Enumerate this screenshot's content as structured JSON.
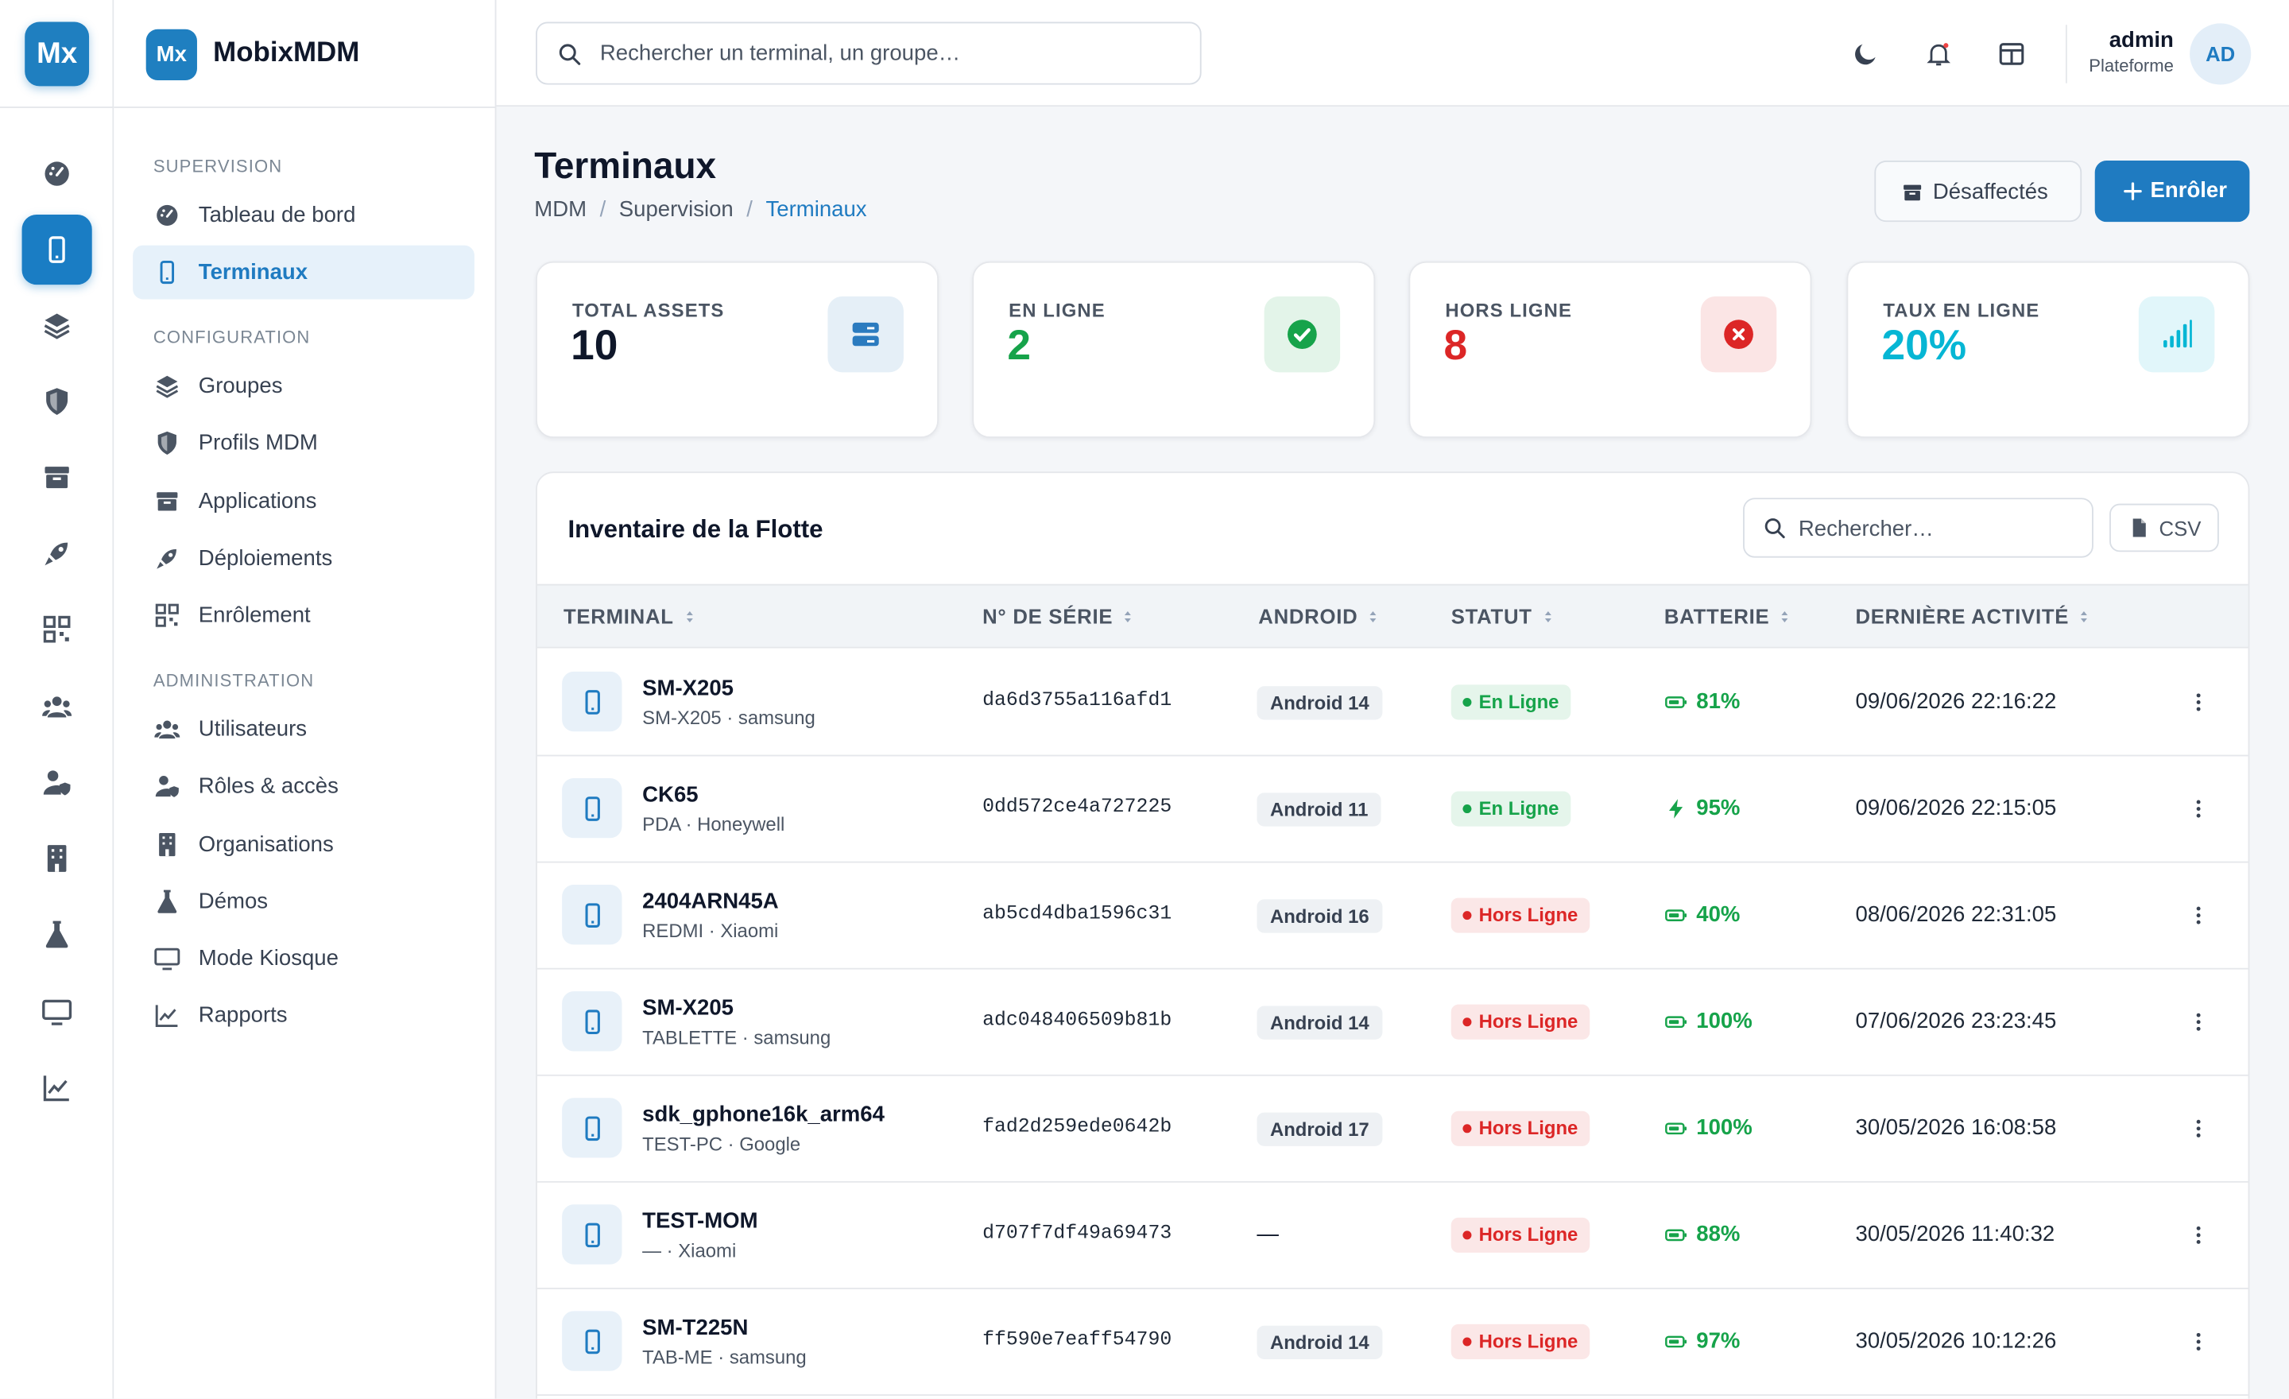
{
  "brand": {
    "logo": "Mx",
    "name": "MobixMDM"
  },
  "topbar": {
    "search": "Rechercher un terminal, un groupe…",
    "user": {
      "name": "admin",
      "role": "Plateforme",
      "initials": "AD"
    }
  },
  "nav": [
    {
      "heading": "SUPERVISION",
      "items": [
        "Tableau de bord",
        "Terminaux"
      ]
    },
    {
      "heading": "CONFIGURATION",
      "items": [
        "Groupes",
        "Profils MDM",
        "Applications",
        "Déploiements",
        "Enrôlement"
      ]
    },
    {
      "heading": "ADMINISTRATION",
      "items": [
        "Utilisateurs",
        "Rôles & accès",
        "Organisations",
        "Démos",
        "Mode Kiosque",
        "Rapports"
      ]
    }
  ],
  "page": {
    "title": "Terminaux",
    "breadcrumb": [
      "MDM",
      "Supervision",
      "Terminaux"
    ],
    "buttons": [
      "Désaffectés",
      "Enrôler"
    ]
  },
  "stats": [
    {
      "label": "TOTAL ASSETS",
      "value": "10",
      "color": "#0f172a",
      "accent": "#2b7bbf"
    },
    {
      "label": "EN LIGNE",
      "value": "2",
      "color": "#16a34a",
      "accent": "#16a34a"
    },
    {
      "label": "HORS LIGNE",
      "value": "8",
      "color": "#dc2626",
      "accent": "#dc2626"
    },
    {
      "label": "TAUX EN LIGNE",
      "value": "20%",
      "color": "#06b6d4",
      "accent": "#06b6d4"
    }
  ],
  "table": {
    "title": "Inventaire de la Flotte",
    "search": "Rechercher…",
    "export": "CSV",
    "columns": [
      "TERMINAL",
      "N° DE SÉRIE",
      "ANDROID",
      "STATUT",
      "BATTERIE",
      "DERNIÈRE ACTIVITÉ"
    ],
    "rows": [
      {
        "name": "SM-X205",
        "model": "SM-X205 · samsung",
        "serial": "da6d3755a116afd1",
        "android": "Android 14",
        "status": {
          "label": "En Ligne",
          "color": "#16a34a"
        },
        "battery": "81%",
        "charging": false,
        "activity": "09/06/2026 22:16:22"
      },
      {
        "name": "CK65",
        "model": "PDA · Honeywell",
        "serial": "0dd572ce4a727225",
        "android": "Android 11",
        "status": {
          "label": "En Ligne",
          "color": "#16a34a"
        },
        "battery": "95%",
        "charging": true,
        "activity": "09/06/2026 22:15:05"
      },
      {
        "name": "2404ARN45A",
        "model": "REDMI · Xiaomi",
        "serial": "ab5cd4dba1596c31",
        "android": "Android 16",
        "status": {
          "label": "Hors Ligne",
          "color": "#dc2626"
        },
        "battery": "40%",
        "charging": false,
        "activity": "08/06/2026 22:31:05"
      },
      {
        "name": "SM-X205",
        "model": "TABLETTE · samsung",
        "serial": "adc048406509b81b",
        "android": "Android 14",
        "status": {
          "label": "Hors Ligne",
          "color": "#dc2626"
        },
        "battery": "100%",
        "charging": false,
        "activity": "07/06/2026 23:23:45"
      },
      {
        "name": "sdk_gphone16k_arm64",
        "model": "TEST-PC · Google",
        "serial": "fad2d259ede0642b",
        "android": "Android 17",
        "status": {
          "label": "Hors Ligne",
          "color": "#dc2626"
        },
        "battery": "100%",
        "charging": false,
        "activity": "30/05/2026 16:08:58"
      },
      {
        "name": "TEST-MOM",
        "model": "— · Xiaomi",
        "serial": "d707f7df49a69473",
        "android": "—",
        "status": {
          "label": "Hors Ligne",
          "color": "#dc2626"
        },
        "battery": "88%",
        "charging": false,
        "activity": "30/05/2026 11:40:32"
      },
      {
        "name": "SM-T225N",
        "model": "TAB-ME · samsung",
        "serial": "ff590e7eaff54790",
        "android": "Android 14",
        "status": {
          "label": "Hors Ligne",
          "color": "#dc2626"
        },
        "battery": "97%",
        "charging": false,
        "activity": "30/05/2026 10:12:26"
      }
    ]
  }
}
